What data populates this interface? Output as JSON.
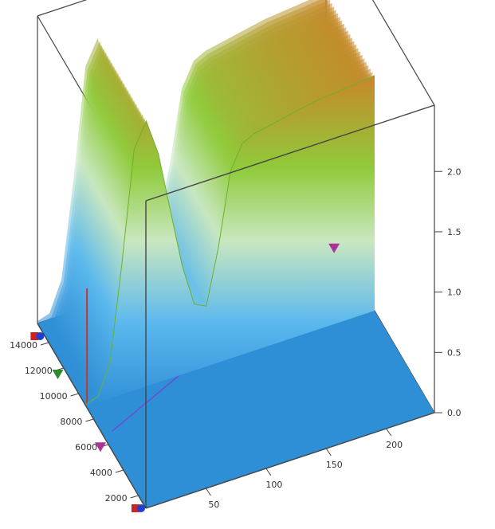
{
  "chart_data": {
    "type": "surface-3d",
    "title": "",
    "xlabel": "",
    "ylabel": "",
    "zlabel": "",
    "x_ticks": [
      50,
      100,
      150,
      200
    ],
    "y_ticks": [
      2000,
      4000,
      6000,
      8000,
      10000,
      12000,
      14000
    ],
    "z_ticks": [
      "0.0",
      "0.5",
      "1.0",
      "1.5",
      "2.0"
    ],
    "x_range": [
      0,
      240
    ],
    "y_range": [
      1000,
      15500
    ],
    "z_range": [
      0,
      2.0
    ],
    "grid": false,
    "box_frame": true,
    "surface_profile": {
      "x": [
        0,
        10,
        20,
        30,
        40,
        50,
        60,
        70,
        80,
        90,
        100,
        110,
        120,
        130,
        140,
        150,
        160,
        170,
        180,
        190,
        200,
        210,
        220,
        230,
        240
      ],
      "z": [
        0.02,
        0.05,
        0.3,
        1.1,
        2.0,
        2.2,
        1.9,
        1.4,
        0.9,
        0.55,
        0.5,
        0.95,
        1.55,
        1.75,
        1.8,
        1.82,
        1.84,
        1.86,
        1.88,
        1.9,
        1.91,
        1.92,
        1.93,
        1.94,
        1.95
      ]
    },
    "ridge_y_range": [
      9000,
      15500
    ],
    "markers": [
      {
        "axis": "y",
        "value": 14500,
        "color": "#cc2222",
        "shape": "pin"
      },
      {
        "axis": "y",
        "value": 11500,
        "color": "#2e8b2e",
        "shape": "triangle"
      },
      {
        "axis": "y",
        "value": 5800,
        "color": "#b0309a",
        "shape": "triangle"
      },
      {
        "axis": "y",
        "value": 1000,
        "color": "#cc2222",
        "shape": "pin"
      },
      {
        "axis": "x",
        "value": 235,
        "color": "#b0309a",
        "shape": "triangle"
      }
    ],
    "colors": {
      "base": "#2f8fd6",
      "low": "#37a8ee",
      "mid": "#7cc13a",
      "high": "#c58a2a",
      "frame": "#444444",
      "trace": "#6f4bd0"
    }
  }
}
